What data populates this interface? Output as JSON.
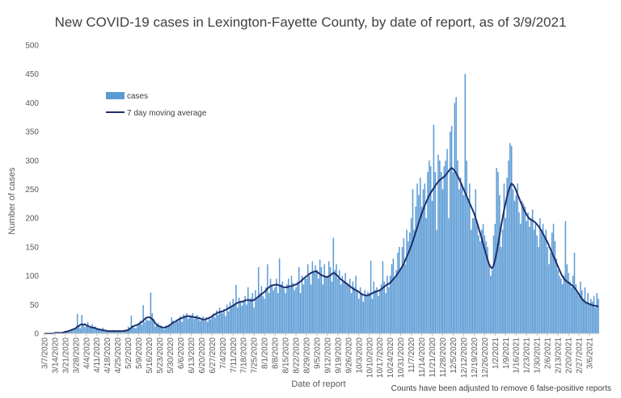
{
  "chart_data": {
    "type": "bar",
    "title": "New COVID-19 cases in Lexington-Fayette County, by date of report, as of 3/9/2021",
    "xlabel": "Date of report",
    "ylabel": "Number of cases",
    "ylim": [
      0,
      500
    ],
    "yticks": [
      0,
      50,
      100,
      150,
      200,
      250,
      300,
      350,
      400,
      450,
      500
    ],
    "grid": false,
    "legend_position": "top-left",
    "note": "Counts have been adjusted to remove 6 false-positive reports",
    "colors": {
      "bars": "#5b9bd5",
      "line": "#1f2f6b"
    },
    "x_tick_labels": [
      "3/7/2020",
      "3/14/2020",
      "3/21/2020",
      "3/28/2020",
      "4/4/2020",
      "4/11/2020",
      "4/18/2020",
      "4/25/2020",
      "5/2/2020",
      "5/9/2020",
      "5/16/2020",
      "5/23/2020",
      "5/30/2020",
      "6/6/2020",
      "6/13/2020",
      "6/20/2020",
      "6/27/2020",
      "7/4/2020",
      "7/11/2020",
      "7/18/2020",
      "7/25/2020",
      "8/1/2020",
      "8/8/2020",
      "8/15/2020",
      "8/22/2020",
      "8/29/2020",
      "9/5/2020",
      "9/12/2020",
      "9/19/2020",
      "9/26/2020",
      "10/3/2020",
      "10/10/2020",
      "10/17/2020",
      "10/24/2020",
      "10/31/2020",
      "11/7/2020",
      "11/14/2020",
      "11/21/2020",
      "11/28/2020",
      "12/5/2020",
      "12/12/2020",
      "12/19/2020",
      "12/26/2020",
      "1/2/2021",
      "1/9/2021",
      "1/16/2021",
      "1/23/2021",
      "1/30/2021",
      "2/6/2021",
      "2/13/2021",
      "2/20/2021",
      "2/27/2021",
      "3/6/2021"
    ],
    "series": [
      {
        "name": "cases",
        "type": "bar",
        "weekly_values": [
          [
            0,
            0,
            0,
            1,
            0,
            1,
            0
          ],
          [
            1,
            0,
            2,
            1,
            1,
            2,
            1
          ],
          [
            3,
            4,
            5,
            3,
            6,
            7,
            8
          ],
          [
            10,
            34,
            12,
            9,
            32,
            14,
            11
          ],
          [
            13,
            20,
            10,
            12,
            16,
            9,
            12
          ],
          [
            8,
            9,
            7,
            6,
            10,
            5,
            6
          ],
          [
            4,
            5,
            3,
            4,
            6,
            3,
            5
          ],
          [
            3,
            4,
            5,
            2,
            6,
            4,
            5
          ],
          [
            12,
            8,
            31,
            14,
            10,
            9,
            13
          ],
          [
            18,
            22,
            15,
            49,
            20,
            25,
            23
          ],
          [
            22,
            71,
            35,
            25,
            12,
            15,
            18
          ],
          [
            10,
            14,
            8,
            7,
            13,
            12,
            15
          ],
          [
            15,
            28,
            22,
            18,
            24,
            20,
            25
          ],
          [
            30,
            20,
            33,
            28,
            35,
            25,
            30
          ],
          [
            28,
            35,
            25,
            30,
            32,
            27,
            22
          ],
          [
            25,
            30,
            22,
            28,
            20,
            27,
            24
          ],
          [
            30,
            35,
            28,
            40,
            32,
            45,
            38
          ],
          [
            35,
            42,
            30,
            50,
            38,
            55,
            45
          ],
          [
            60,
            50,
            84,
            45,
            62,
            55,
            48
          ],
          [
            55,
            65,
            50,
            80,
            58,
            62,
            70
          ],
          [
            45,
            75,
            60,
            115,
            70,
            82,
            65
          ],
          [
            60,
            80,
            120,
            70,
            95,
            85,
            75
          ],
          [
            80,
            95,
            70,
            130,
            85,
            90,
            78
          ],
          [
            70,
            85,
            95,
            80,
            100,
            88,
            75
          ],
          [
            80,
            90,
            115,
            70,
            100,
            85,
            95
          ],
          [
            95,
            120,
            100,
            85,
            125,
            105,
            118
          ],
          [
            110,
            95,
            128,
            115,
            85,
            120,
            100
          ],
          [
            100,
            125,
            115,
            90,
            166,
            110,
            120
          ],
          [
            95,
            110,
            85,
            100,
            90,
            105,
            88
          ],
          [
            85,
            95,
            70,
            90,
            80,
            100,
            75
          ],
          [
            60,
            80,
            70,
            55,
            75,
            65,
            72
          ],
          [
            70,
            126,
            60,
            90,
            75,
            80,
            65
          ],
          [
            75,
            85,
            125,
            90,
            70,
            100,
            80
          ],
          [
            100,
            120,
            130,
            95,
            110,
            140,
            150
          ],
          [
            110,
            150,
            165,
            120,
            180,
            160,
            175
          ],
          [
            200,
            250,
            180,
            220,
            260,
            240,
            270
          ],
          [
            220,
            250,
            260,
            200,
            280,
            300,
            290
          ],
          [
            230,
            362,
            280,
            180,
            310,
            300,
            280
          ],
          [
            250,
            290,
            300,
            320,
            200,
            350,
            360
          ],
          [
            280,
            400,
            410,
            300,
            250,
            270,
            260
          ],
          [
            240,
            450,
            300,
            230,
            260,
            180,
            200
          ],
          [
            200,
            250,
            190,
            170,
            160,
            180,
            190
          ],
          [
            170,
            160,
            150,
            120,
            100,
            110,
            170
          ],
          [
            190,
            287,
            280,
            240,
            150,
            180,
            260
          ],
          [
            200,
            270,
            300,
            330,
            325,
            250,
            230
          ],
          [
            240,
            260,
            210,
            190,
            230,
            225,
            220
          ],
          [
            195,
            210,
            185,
            200,
            215,
            180,
            190
          ],
          [
            170,
            150,
            200,
            175,
            190,
            165,
            180
          ],
          [
            150,
            120,
            140,
            175,
            190,
            160,
            130
          ],
          [
            110,
            100,
            95,
            85,
            100,
            195,
            120
          ],
          [
            105,
            90,
            80,
            100,
            140,
            85,
            70
          ],
          [
            65,
            90,
            75,
            60,
            80,
            55,
            70
          ],
          [
            50,
            60,
            55,
            65,
            45,
            70,
            60
          ]
        ]
      },
      {
        "name": "7 day moving average",
        "type": "line",
        "weekly_values": [
          [
            0,
            0,
            0,
            0,
            0,
            0,
            0
          ],
          [
            1,
            1,
            1,
            1,
            1,
            1,
            2
          ],
          [
            3,
            3,
            4,
            5,
            6,
            7,
            8
          ],
          [
            9,
            12,
            13,
            15,
            16,
            15,
            16
          ],
          [
            14,
            13,
            12,
            11,
            10,
            10,
            9
          ],
          [
            8,
            7,
            7,
            6,
            6,
            5,
            5
          ],
          [
            4,
            4,
            4,
            4,
            4,
            4,
            4
          ],
          [
            4,
            4,
            4,
            4,
            4,
            5,
            5
          ],
          [
            6,
            8,
            10,
            12,
            13,
            14,
            15
          ],
          [
            16,
            18,
            20,
            22,
            25,
            27,
            28
          ],
          [
            28,
            27,
            25,
            22,
            18,
            15,
            13
          ],
          [
            12,
            11,
            10,
            10,
            11,
            12,
            13
          ],
          [
            15,
            17,
            19,
            20,
            21,
            23,
            25
          ],
          [
            26,
            27,
            28,
            29,
            30,
            30,
            30
          ],
          [
            29,
            29,
            28,
            28,
            27,
            27,
            26
          ],
          [
            25,
            24,
            24,
            25,
            26,
            27,
            28
          ],
          [
            30,
            32,
            33,
            35,
            36,
            37,
            38
          ],
          [
            38,
            40,
            41,
            42,
            44,
            45,
            47
          ],
          [
            48,
            50,
            52,
            53,
            54,
            55,
            55
          ],
          [
            56,
            57,
            58,
            58,
            58,
            57,
            57
          ],
          [
            58,
            60,
            62,
            64,
            66,
            68,
            70
          ],
          [
            72,
            75,
            78,
            80,
            82,
            83,
            84
          ],
          [
            84,
            85,
            84,
            83,
            82,
            81,
            80
          ],
          [
            80,
            80,
            81,
            82,
            82,
            83,
            84
          ],
          [
            85,
            86,
            88,
            90,
            92,
            95,
            97
          ],
          [
            99,
            101,
            103,
            105,
            106,
            107,
            108
          ],
          [
            107,
            105,
            103,
            101,
            100,
            99,
            98
          ],
          [
            98,
            99,
            101,
            103,
            105,
            104,
            102
          ],
          [
            99,
            96,
            94,
            92,
            90,
            88,
            86
          ],
          [
            84,
            82,
            80,
            78,
            76,
            75,
            74
          ],
          [
            72,
            70,
            68,
            67,
            66,
            66,
            66
          ],
          [
            67,
            68,
            70,
            71,
            72,
            73,
            74
          ],
          [
            75,
            77,
            79,
            81,
            83,
            85,
            86
          ],
          [
            88,
            91,
            94,
            97,
            100,
            104,
            108
          ],
          [
            112,
            116,
            121,
            127,
            133,
            139,
            145
          ],
          [
            152,
            160,
            168,
            176,
            184,
            192,
            200
          ],
          [
            208,
            215,
            222,
            228,
            234,
            239,
            244
          ],
          [
            248,
            252,
            256,
            260,
            263,
            266,
            268
          ],
          [
            270,
            272,
            275,
            278,
            282,
            285,
            287
          ],
          [
            285,
            282,
            278,
            273,
            268,
            262,
            256
          ],
          [
            250,
            244,
            238,
            232,
            226,
            220,
            214
          ],
          [
            208,
            200,
            192,
            183,
            174,
            165,
            155
          ],
          [
            146,
            137,
            128,
            120,
            115,
            113,
            118
          ],
          [
            128,
            140,
            155,
            170,
            186,
            200,
            214
          ],
          [
            226,
            238,
            248,
            255,
            260,
            258,
            254
          ],
          [
            248,
            241,
            235,
            228,
            222,
            216,
            211
          ],
          [
            206,
            202,
            199,
            197,
            196,
            194,
            192
          ],
          [
            189,
            186,
            182,
            178,
            173,
            168,
            163
          ],
          [
            158,
            152,
            146,
            140,
            134,
            128,
            122
          ],
          [
            116,
            110,
            104,
            99,
            95,
            92,
            90
          ],
          [
            88,
            86,
            84,
            82,
            79,
            76,
            72
          ],
          [
            68,
            64,
            60,
            57,
            55,
            53,
            52
          ],
          [
            51,
            50,
            49,
            48,
            48,
            47,
            47
          ]
        ]
      }
    ]
  }
}
